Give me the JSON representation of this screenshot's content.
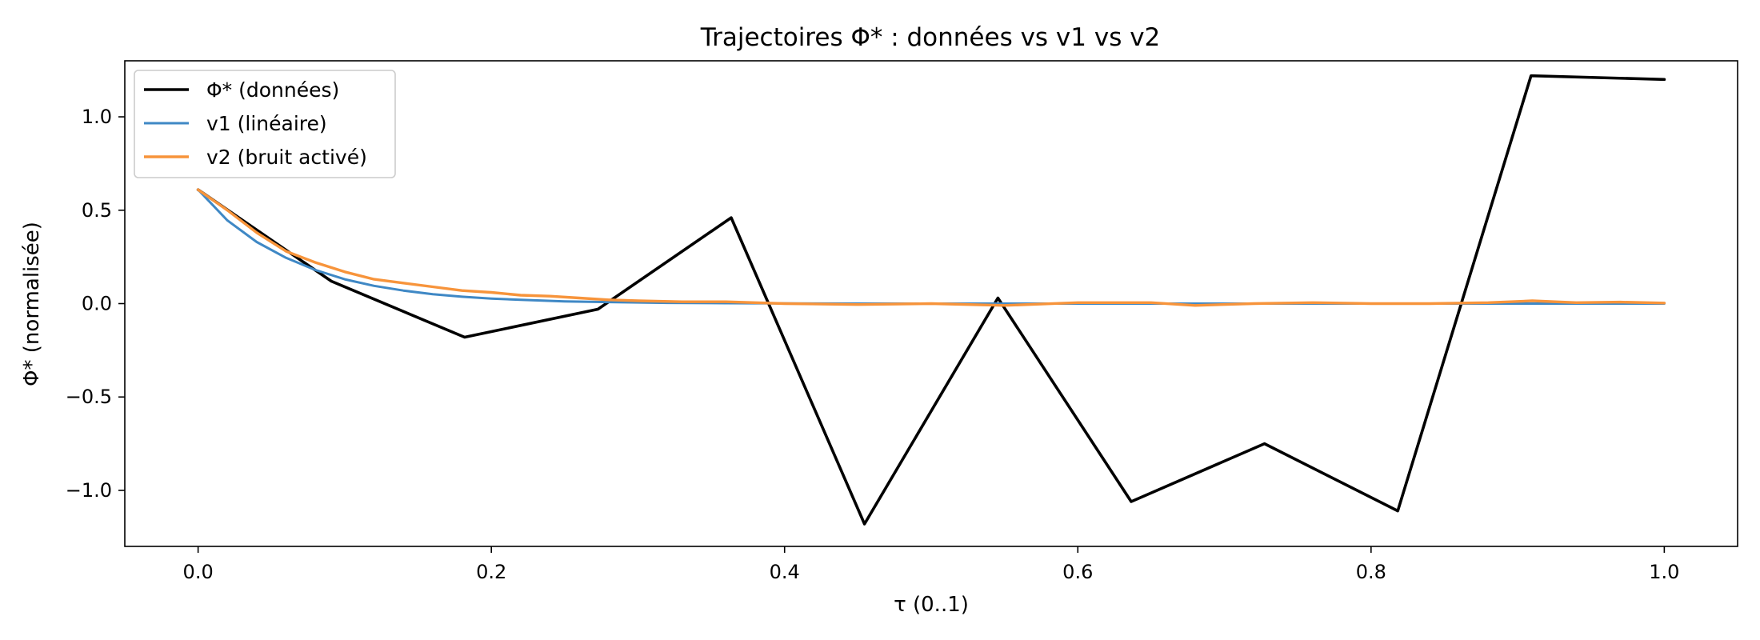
{
  "chart_data": {
    "type": "line",
    "title": "Trajectoires Φ* : données vs v1 vs v2",
    "xlabel": "τ (0..1)",
    "ylabel": "Φ* (normalisée)",
    "xlim": [
      -0.05,
      1.05
    ],
    "ylim": [
      -1.3,
      1.3
    ],
    "x_ticks": [
      0.0,
      0.2,
      0.4,
      0.6,
      0.8,
      1.0
    ],
    "x_tick_labels": [
      "0.0",
      "0.2",
      "0.4",
      "0.6",
      "0.8",
      "1.0"
    ],
    "y_ticks": [
      -1.0,
      -0.5,
      0.0,
      0.5,
      1.0
    ],
    "y_tick_labels": [
      "−1.0",
      "−0.5",
      "0.0",
      "0.5",
      "1.0"
    ],
    "grid": false,
    "legend_position": "top-left",
    "series": [
      {
        "name": "Φ* (données)",
        "color": "#000000",
        "x": [
          0.0,
          0.0909,
          0.1818,
          0.2727,
          0.3636,
          0.4545,
          0.5455,
          0.6364,
          0.7273,
          0.8182,
          0.9091,
          1.0
        ],
        "y": [
          0.61,
          0.12,
          -0.18,
          -0.03,
          0.46,
          -1.18,
          0.03,
          -1.06,
          -0.75,
          -1.11,
          1.22,
          1.2
        ]
      },
      {
        "name": "v1 (linéaire)",
        "color": "#3f88c5",
        "x": [
          0.0,
          0.02,
          0.04,
          0.06,
          0.08,
          0.1,
          0.12,
          0.14,
          0.16,
          0.18,
          0.2,
          0.22,
          0.25,
          0.28,
          0.32,
          0.36,
          0.4,
          0.5,
          0.6,
          0.7,
          0.8,
          0.9,
          1.0
        ],
        "y": [
          0.61,
          0.445,
          0.33,
          0.245,
          0.18,
          0.13,
          0.095,
          0.07,
          0.05,
          0.037,
          0.027,
          0.02,
          0.012,
          0.008,
          0.004,
          0.002,
          0.001,
          0.0,
          0.0,
          0.0,
          0.0,
          0.0,
          0.0
        ]
      },
      {
        "name": "v2 (bruit activé)",
        "color": "#f7943b",
        "x": [
          0.0,
          0.02,
          0.04,
          0.06,
          0.08,
          0.1,
          0.12,
          0.14,
          0.16,
          0.18,
          0.2,
          0.22,
          0.24,
          0.26,
          0.28,
          0.3,
          0.33,
          0.36,
          0.4,
          0.45,
          0.5,
          0.55,
          0.6,
          0.65,
          0.68,
          0.72,
          0.76,
          0.8,
          0.84,
          0.88,
          0.91,
          0.94,
          0.97,
          1.0
        ],
        "y": [
          0.61,
          0.5,
          0.38,
          0.28,
          0.22,
          0.17,
          0.13,
          0.11,
          0.09,
          0.07,
          0.06,
          0.045,
          0.04,
          0.03,
          0.02,
          0.015,
          0.01,
          0.01,
          0.0,
          -0.005,
          0.0,
          -0.01,
          0.005,
          0.005,
          -0.01,
          0.0,
          0.005,
          0.0,
          0.0,
          0.005,
          0.015,
          0.005,
          0.008,
          0.003
        ]
      }
    ]
  }
}
